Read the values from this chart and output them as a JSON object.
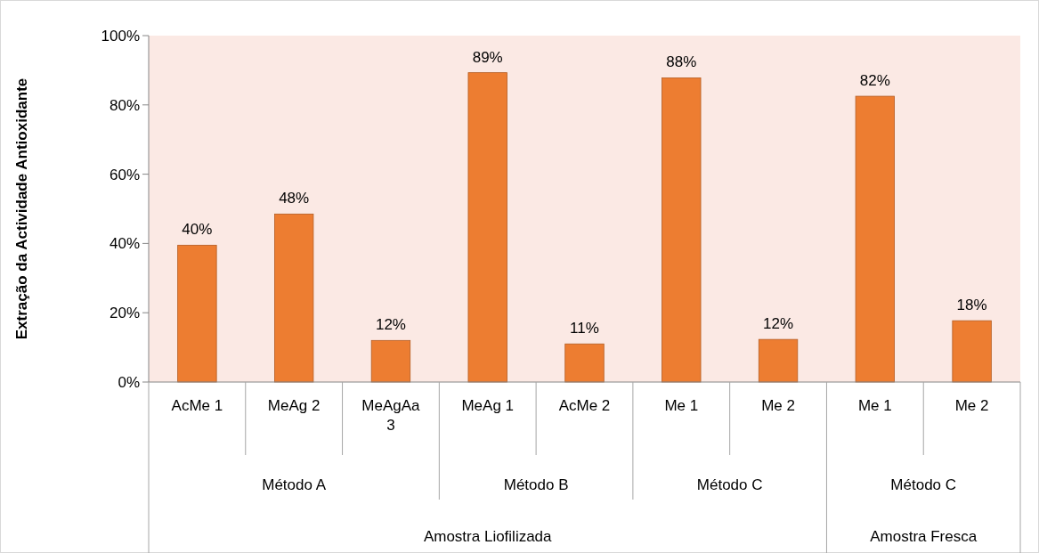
{
  "chart_data": {
    "type": "bar",
    "ylabel": "Extração da Actividade Antioxidante",
    "categories": [
      "AcMe 1",
      "MeAg 2",
      "MeAgAa 3",
      "MeAg 1",
      "AcMe 2",
      "Me 1",
      "Me 2",
      "Me 1",
      "Me 2"
    ],
    "values": [
      39.5,
      48.5,
      12,
      89.3,
      11,
      87.8,
      12.3,
      82.5,
      17.7
    ],
    "value_labels": [
      "40%",
      "48%",
      "12%",
      "89%",
      "11%",
      "88%",
      "12%",
      "82%",
      "18%"
    ],
    "color": "#ed7d31",
    "ylim": [
      0,
      100
    ],
    "yticks": [
      {
        "value": 0,
        "label": "0%"
      },
      {
        "value": 20,
        "label": "20%"
      },
      {
        "value": 40,
        "label": "40%"
      },
      {
        "value": 60,
        "label": "60%"
      },
      {
        "value": 80,
        "label": "80%"
      },
      {
        "value": 100,
        "label": "100%"
      }
    ],
    "annotations": [
      "Método A",
      "Método B",
      "Método C",
      "Método C",
      "Amostra Liofilizada",
      "Amostra Fresca"
    ],
    "grid": false
  }
}
